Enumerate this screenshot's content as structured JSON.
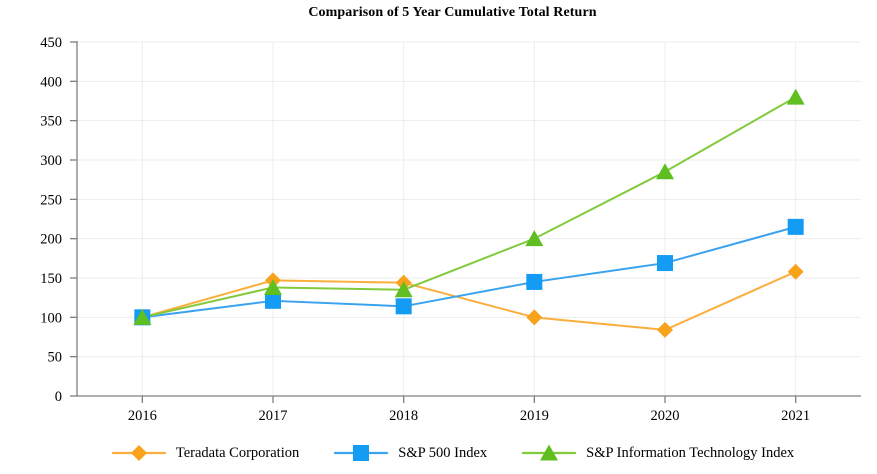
{
  "page": {
    "background": "#FFFFFF"
  },
  "chart_data": {
    "type": "line",
    "title": "Comparison of 5 Year Cumulative Total Return",
    "categories": [
      "2016",
      "2017",
      "2018",
      "2019",
      "2020",
      "2021"
    ],
    "series": [
      {
        "name": "Teradata Corporation",
        "marker": "diamond",
        "line_color": "#FBAE3C",
        "marker_color": "#F9A21C",
        "values": [
          100,
          147,
          144,
          100,
          84,
          158
        ]
      },
      {
        "name": "S&P 500 Index",
        "marker": "square",
        "line_color": "#3AA2EE",
        "marker_color": "#149BF3",
        "values": [
          100,
          121,
          114,
          145,
          169,
          215
        ]
      },
      {
        "name": "S&P Information Technology Index",
        "marker": "triangle",
        "line_color": "#82CA3C",
        "marker_color": "#5FBE20",
        "values": [
          100,
          138,
          135,
          200,
          285,
          380
        ]
      }
    ],
    "xlabel": "",
    "ylabel": "",
    "ylim": [
      0,
      450
    ],
    "ytick_step": 50,
    "y_ticks": [
      0,
      50,
      100,
      150,
      200,
      250,
      300,
      350,
      400,
      450
    ],
    "grid": true,
    "legend_position": "bottom",
    "axis_color": "#7F7F7F",
    "grid_color": "#EDEDED",
    "text_color": "#000000",
    "tick_font_size": 14.5
  }
}
